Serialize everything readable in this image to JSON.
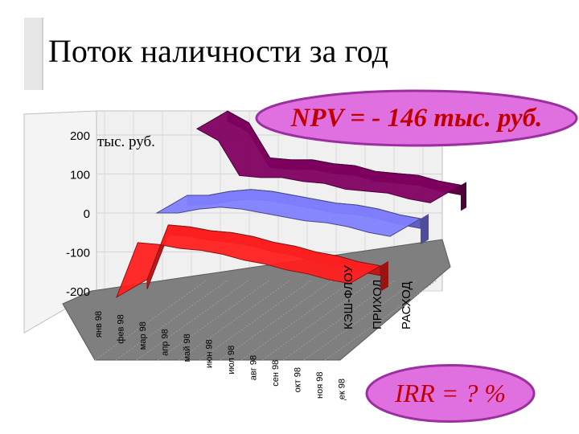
{
  "slide": {
    "title": "Поток наличности за год",
    "npv_text": "NPV = - 146 тыс. руб.",
    "irr_text": "IRR = ? %"
  },
  "colors": {
    "oval_fill": "#e070e0",
    "oval_border": "#9a2fa0",
    "annotation_text": "#c00000",
    "floor": "#7f7f7f",
    "wall": "#f0f0f0"
  },
  "chart_data": {
    "type": "area",
    "unit_label": "тыс. руб.",
    "ylim": [
      -200,
      200
    ],
    "y_ticks": [
      200,
      100,
      0,
      -100,
      -200
    ],
    "categories": [
      "янв 98",
      "фев 98",
      "мар 98",
      "апр 98",
      "май 98",
      "июн 98",
      "июл 98",
      "авг 98",
      "сен 98",
      "окт 98",
      "ноя 98",
      "дек 98"
    ],
    "series": [
      {
        "name": "КЭШ-ФЛОУ",
        "color": "#ff2020",
        "values": [
          -150,
          -10,
          -15,
          -25,
          -30,
          -40,
          -55,
          -65,
          -80,
          -90,
          -105,
          -115
        ]
      },
      {
        "name": "ПРИХОД",
        "color": "#8080ff",
        "values": [
          0,
          0,
          10,
          15,
          10,
          0,
          -10,
          -20,
          -25,
          -35,
          -50,
          -60
        ]
      },
      {
        "name": "РАСХОД",
        "color": "#800060",
        "values": [
          150,
          120,
          30,
          25,
          25,
          15,
          10,
          -5,
          -10,
          -15,
          -30,
          -40
        ]
      }
    ],
    "grid": true,
    "legend": "depth-axis-right"
  }
}
